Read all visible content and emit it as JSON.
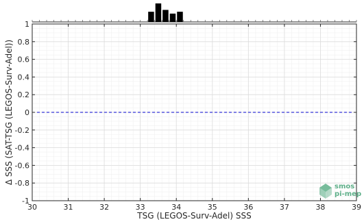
{
  "chart_data": {
    "type": "scatter",
    "xlabel": "TSG (LEGOS-Surv-Adel) SSS",
    "ylabel": "Δ SSS (SAT-TSG (LEGOS-Surv-Adel))",
    "xlim": [
      30,
      39
    ],
    "ylim": [
      -1,
      1
    ],
    "x_ticks": [
      "30",
      "31",
      "32",
      "33",
      "34",
      "35",
      "36",
      "37",
      "38",
      "39"
    ],
    "y_ticks": [
      "1",
      "0.8",
      "0.6",
      "0.4",
      "0.2",
      "0",
      "-0.2",
      "-0.4",
      "-0.6",
      "-0.8",
      "-1"
    ],
    "grid": true,
    "reference_line": {
      "y": 0,
      "style": "dashed",
      "color": "#0000cc"
    },
    "histogram": {
      "bin_width": 0.2,
      "bins": [
        {
          "x": 33.3,
          "count": 0.55
        },
        {
          "x": 33.5,
          "count": 1.0
        },
        {
          "x": 33.7,
          "count": 0.65
        },
        {
          "x": 33.9,
          "count": 0.45
        },
        {
          "x": 34.1,
          "count": 0.55
        }
      ]
    },
    "series": []
  },
  "logo": {
    "line1": "smos",
    "line2": "pi-mep",
    "color": "#5fb08a"
  }
}
